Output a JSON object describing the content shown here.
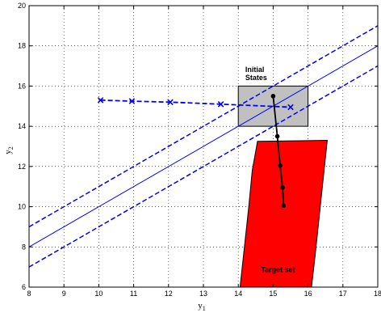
{
  "chart_data": {
    "type": "line",
    "xlabel": "y",
    "xlabel_sub": "1",
    "ylabel": "y",
    "ylabel_sub": "2",
    "xlim": [
      8,
      18
    ],
    "ylim": [
      6,
      20
    ],
    "x_ticks": [
      8,
      9,
      10,
      11,
      12,
      13,
      14,
      15,
      16,
      17,
      18
    ],
    "y_ticks": [
      6,
      8,
      10,
      12,
      14,
      16,
      18,
      20
    ],
    "grid": true,
    "colors": {
      "blue": "#0000ff",
      "red": "#ff0000",
      "gray": "#c0c0c0",
      "black": "#000000"
    },
    "lines": [
      {
        "style": "solid",
        "color": "blue",
        "points": [
          [
            8,
            8
          ],
          [
            18,
            18
          ]
        ]
      },
      {
        "style": "dashed",
        "color": "blue",
        "points": [
          [
            8,
            9
          ],
          [
            18,
            19
          ]
        ]
      },
      {
        "style": "dashed",
        "color": "blue",
        "points": [
          [
            8,
            7
          ],
          [
            18,
            17
          ]
        ]
      }
    ],
    "series": [
      {
        "style": "dashed",
        "marker": "x",
        "color": "blue",
        "x": [
          10.05,
          10.95,
          12.05,
          13.5,
          15.5
        ],
        "y": [
          15.3,
          15.25,
          15.2,
          15.1,
          14.95
        ]
      },
      {
        "style": "solid",
        "marker": "dot",
        "color": "black",
        "x": [
          15.0,
          15.12,
          15.2,
          15.27,
          15.3
        ],
        "y": [
          15.5,
          13.5,
          12.05,
          10.95,
          10.05
        ]
      }
    ],
    "regions": [
      {
        "name": "initial-states",
        "label_lines": [
          "Initial",
          "States"
        ],
        "fill": "gray",
        "points": [
          [
            14,
            14
          ],
          [
            16,
            14
          ],
          [
            16,
            16
          ],
          [
            14,
            16
          ]
        ]
      },
      {
        "name": "target-set",
        "label_lines": [
          "Target set"
        ],
        "fill": "red",
        "points": [
          [
            14.55,
            13.25
          ],
          [
            16.55,
            13.3
          ],
          [
            16.2,
            7.5
          ],
          [
            16.1,
            6
          ],
          [
            14.05,
            6
          ],
          [
            14.3,
            10
          ],
          [
            14.4,
            11.8
          ]
        ]
      }
    ],
    "annotations": [
      {
        "region": "initial-states",
        "text_lines": [
          "Initial",
          "States"
        ],
        "x": 14.2,
        "y": 16.7
      },
      {
        "region": "target-set",
        "text_lines": [
          "Target set"
        ],
        "x": 14.65,
        "y": 6.75
      }
    ]
  }
}
